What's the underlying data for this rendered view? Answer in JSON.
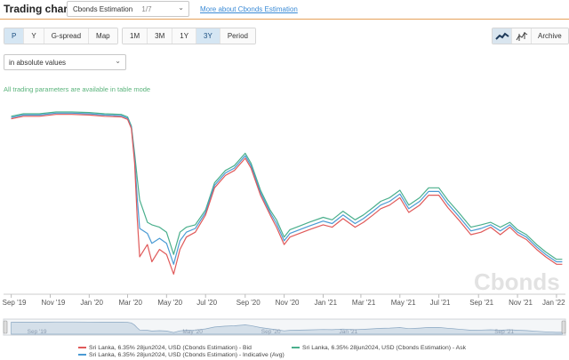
{
  "header": {
    "title": "Trading chart",
    "source": {
      "value": "Cbonds Estimation",
      "counter": "1/7"
    },
    "more_link": "More about Cbonds Estimation"
  },
  "toolbar": {
    "view_tabs": [
      "P",
      "Y",
      "G-spread",
      "Map"
    ],
    "active_view": "P",
    "periods": [
      "1M",
      "3M",
      "1Y",
      "3Y",
      "Period"
    ],
    "active_period": "3Y",
    "archive_label": "Archive"
  },
  "mode_select": {
    "value": "in absolute values"
  },
  "note": "All trading parameters are available in table mode",
  "watermark": "Cbonds",
  "chart_data": {
    "type": "line",
    "x": [
      "2019-09-01",
      "2019-09-20",
      "2019-10-15",
      "2019-11-10",
      "2019-12-05",
      "2020-01-01",
      "2020-01-25",
      "2020-02-20",
      "2020-03-01",
      "2020-03-07",
      "2020-03-12",
      "2020-03-16",
      "2020-03-20",
      "2020-04-01",
      "2020-04-08",
      "2020-04-20",
      "2020-05-01",
      "2020-05-12",
      "2020-05-22",
      "2020-06-01",
      "2020-06-15",
      "2020-07-01",
      "2020-07-15",
      "2020-08-01",
      "2020-08-15",
      "2020-09-01",
      "2020-09-10",
      "2020-09-25",
      "2020-10-10",
      "2020-10-20",
      "2020-11-01",
      "2020-11-10",
      "2020-11-25",
      "2020-12-10",
      "2021-01-01",
      "2021-01-15",
      "2021-02-01",
      "2021-02-20",
      "2021-03-05",
      "2021-03-20",
      "2021-04-01",
      "2021-04-15",
      "2021-05-01",
      "2021-05-15",
      "2021-06-01",
      "2021-06-15",
      "2021-07-01",
      "2021-07-15",
      "2021-08-01",
      "2021-08-20",
      "2021-09-05",
      "2021-09-20",
      "2021-10-05",
      "2021-10-20",
      "2021-11-01",
      "2021-11-15",
      "2021-12-01",
      "2021-12-15",
      "2022-01-01",
      "2022-01-10"
    ],
    "series": [
      {
        "name": "Sri Lanka, 6.35% 28jun2024, USD (Cbonds Estimation) - Bid",
        "color": "#e05a5a",
        "values": [
          68.0,
          70.0,
          70.0,
          71.5,
          71.5,
          71.0,
          70.0,
          69.5,
          67.5,
          60.0,
          32.0,
          -12.0,
          -44.0,
          -34.0,
          -48.0,
          -38.0,
          -42.0,
          -58.0,
          -38.0,
          -28.0,
          -24.0,
          -10.0,
          12.0,
          22.0,
          26.0,
          36.0,
          28.0,
          6.0,
          -10.0,
          -20.0,
          -34.0,
          -28.0,
          -25.0,
          -22.0,
          -18.0,
          -20.0,
          -13.0,
          -20.0,
          -16.0,
          -10.0,
          -5.0,
          -2.0,
          4.0,
          -8.0,
          -2.0,
          6.0,
          6.0,
          -4.0,
          -14.0,
          -26.0,
          -24.0,
          -20.0,
          -26.0,
          -20.0,
          -26.0,
          -30.0,
          -38.0,
          -44.0,
          -50.0,
          -50.0
        ]
      },
      {
        "name": "Sri Lanka, 6.35% 28jun2024, USD (Cbonds Estimation) - Ask",
        "color": "#4aaf8c",
        "values": [
          70.0,
          72.0,
          72.0,
          73.5,
          73.5,
          73.0,
          72.0,
          71.5,
          69.5,
          62.0,
          40.0,
          20.0,
          2.0,
          -16.0,
          -18.0,
          -20.0,
          -24.0,
          -42.0,
          -24.0,
          -20.0,
          -18.0,
          -6.0,
          16.0,
          26.0,
          30.0,
          40.0,
          32.0,
          10.0,
          -6.0,
          -14.0,
          -28.0,
          -22.0,
          -19.0,
          -16.0,
          -12.0,
          -14.0,
          -7.0,
          -14.0,
          -10.0,
          -4.0,
          1.0,
          4.0,
          10.0,
          -2.0,
          4.0,
          12.0,
          12.0,
          2.0,
          -8.0,
          -20.0,
          -18.0,
          -16.0,
          -20.0,
          -16.0,
          -22.0,
          -26.0,
          -34.0,
          -40.0,
          -46.0,
          -46.0
        ]
      },
      {
        "name": "Sri Lanka, 6.35% 28jun2024, USD (Cbonds Estimation) - Indicative (Avg)",
        "color": "#4a9bd4",
        "values": [
          69.0,
          71.0,
          71.0,
          72.5,
          72.5,
          72.0,
          71.0,
          70.5,
          68.5,
          61.0,
          36.0,
          4.0,
          -21.0,
          -25.0,
          -33.0,
          -29.0,
          -33.0,
          -50.0,
          -31.0,
          -24.0,
          -21.0,
          -8.0,
          14.0,
          24.0,
          28.0,
          38.0,
          30.0,
          8.0,
          -8.0,
          -17.0,
          -31.0,
          -25.0,
          -22.0,
          -19.0,
          -15.0,
          -17.0,
          -10.0,
          -17.0,
          -13.0,
          -7.0,
          -2.0,
          1.0,
          7.0,
          -5.0,
          1.0,
          9.0,
          9.0,
          -1.0,
          -11.0,
          -23.0,
          -21.0,
          -18.0,
          -23.0,
          -18.0,
          -24.0,
          -28.0,
          -36.0,
          -42.0,
          -48.0,
          -48.0
        ]
      }
    ],
    "x_tick_labels": [
      "Sep '19",
      "Nov '19",
      "Jan '20",
      "Mar '20",
      "May '20",
      "Jul '20",
      "Sep '20",
      "Nov '20",
      "Jan '21",
      "Mar '21",
      "May '21",
      "Jul '21",
      "Sep '21",
      "Nov '21",
      "Jan '22"
    ],
    "navigator_tick_labels": [
      "Sep '19",
      "May '20",
      "Sep '20",
      "Jan '21",
      "Sep '21"
    ],
    "ylim": [
      -70,
      85
    ],
    "grid": false,
    "legend": "bottom"
  }
}
